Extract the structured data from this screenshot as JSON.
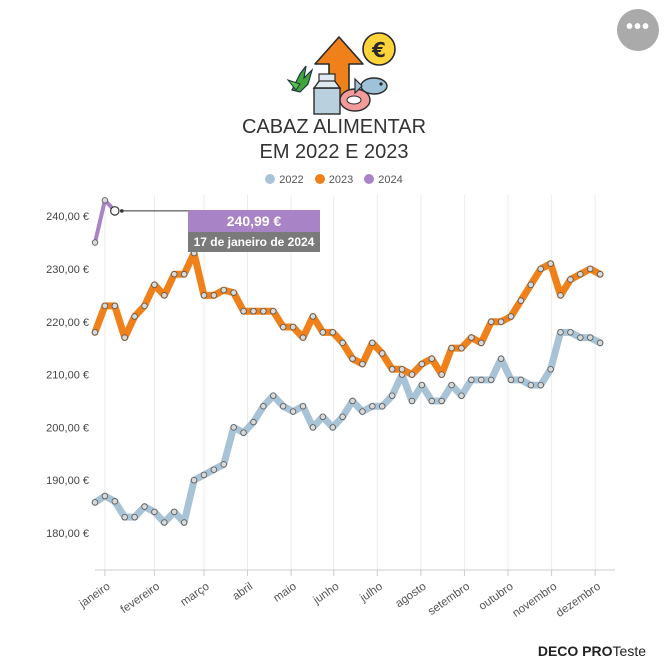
{
  "menu_icon": "ellipsis-icon",
  "title_lines": [
    "CABAZ ALIMENTAR",
    "EM 2022 E 2023"
  ],
  "tooltip": {
    "value": "240,99 €",
    "date": "17 de janeiro de 2024"
  },
  "brand": {
    "bold": "DECO PRO",
    "rest": "Teste"
  },
  "colors": {
    "2022": "#a9c3d6",
    "2023": "#f08019",
    "2024": "#a884c6",
    "marker_fill": "#d9d9d9",
    "grid": "#ececec"
  },
  "chart_data": {
    "type": "line",
    "title": "CABAZ ALIMENTAR EM 2022 E 2023",
    "legend_position": "top",
    "y_tick_labels": [
      "180,00 €",
      "190,00 €",
      "200,00 €",
      "210,00 €",
      "220,00 €",
      "230,00 €",
      "240,00 €"
    ],
    "y_ticks": [
      180,
      190,
      200,
      210,
      220,
      230,
      240
    ],
    "ylim": [
      173,
      244
    ],
    "x_range_weeks": [
      0,
      52.5
    ],
    "months": [
      "janeiro",
      "fevereiro",
      "março",
      "abril",
      "maio",
      "junho",
      "julho",
      "agosto",
      "setembro",
      "outubro",
      "novembro",
      "dezembro"
    ],
    "month_weeks": [
      1,
      6,
      11,
      15.4,
      19.8,
      24.1,
      28.5,
      32.9,
      37.3,
      41.7,
      46.1,
      50.5
    ],
    "series": [
      {
        "name": "2022",
        "values": [
          185.8,
          187,
          186,
          183,
          183,
          185,
          184,
          182,
          184,
          182,
          190,
          191,
          192,
          193,
          200,
          199,
          201,
          204,
          206,
          204,
          203,
          204,
          200,
          202,
          200,
          202,
          205,
          203,
          204,
          204,
          206,
          210,
          205,
          208,
          205,
          205,
          208,
          206,
          209,
          209,
          209,
          213,
          209,
          209,
          208,
          208,
          211,
          218,
          218,
          217,
          217,
          216
        ]
      },
      {
        "name": "2023",
        "values": [
          218,
          223,
          223,
          217,
          221,
          223,
          227,
          225,
          229,
          229,
          233,
          225,
          225,
          226,
          225.5,
          222,
          222,
          222,
          222,
          219,
          219,
          217,
          221,
          218,
          218,
          216,
          213,
          212,
          216,
          214,
          211,
          211,
          210,
          212,
          213,
          210,
          215,
          215,
          217,
          216,
          220,
          220,
          221,
          224,
          227,
          230,
          231,
          225,
          228,
          229,
          230,
          229
        ]
      },
      {
        "name": "2024",
        "values": [
          235,
          243,
          240.99
        ]
      }
    ]
  }
}
